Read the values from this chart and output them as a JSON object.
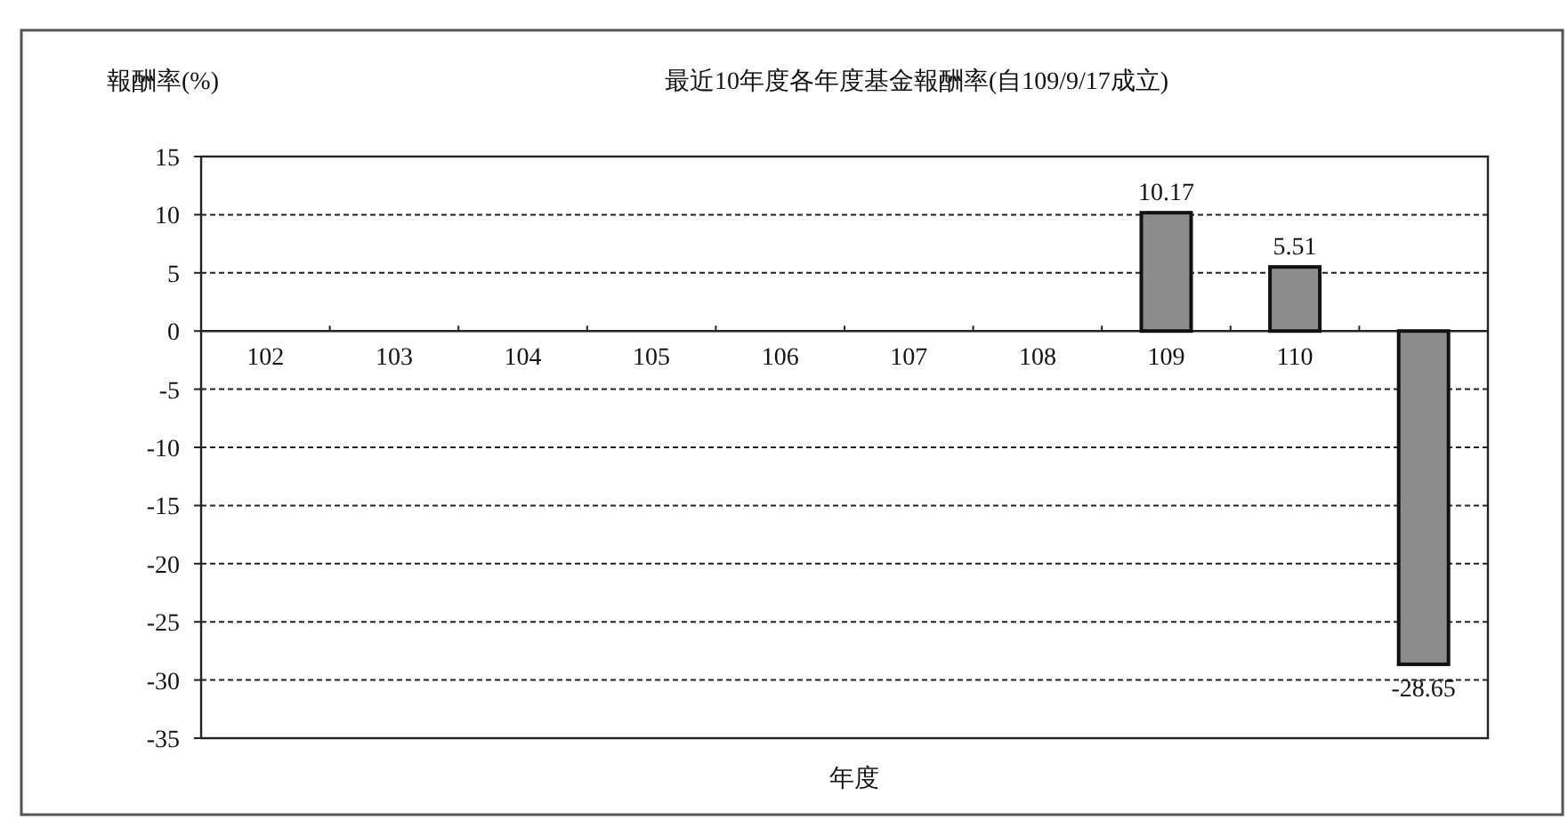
{
  "chart_data": {
    "type": "bar",
    "title": "最近10年度各年度基金報酬率(自109/9/17成立)",
    "ylabel": "報酬率(%)",
    "xlabel": "年度",
    "categories": [
      "102",
      "103",
      "104",
      "105",
      "106",
      "107",
      "108",
      "109",
      "110",
      null
    ],
    "values": [
      null,
      null,
      null,
      null,
      null,
      null,
      null,
      10.17,
      5.51,
      -28.65
    ],
    "color": "#8c8c8c",
    "ylim": [
      -35,
      15
    ],
    "yticks": [
      -35,
      -30,
      -25,
      -20,
      -15,
      -10,
      -5,
      0,
      5,
      10,
      15
    ],
    "grid": "y",
    "data_labels": true
  }
}
